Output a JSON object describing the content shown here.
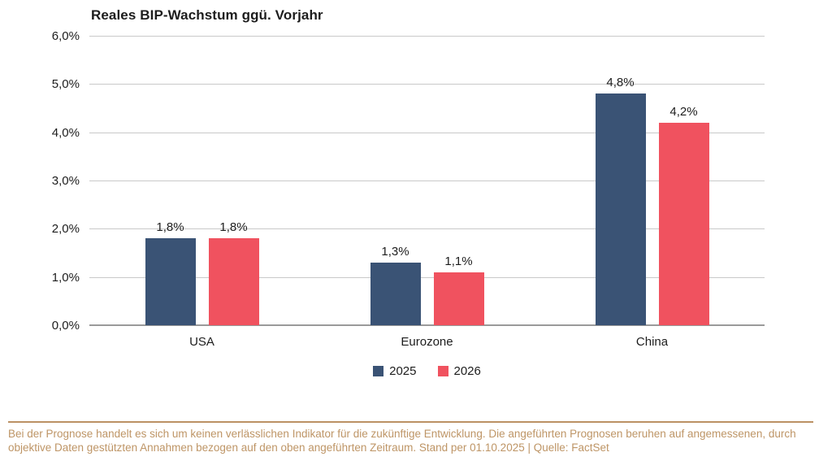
{
  "title": "Reales BIP-Wachstum ggü. Vorjahr",
  "footer": {
    "line1": "Bei der Prognose handelt es sich um keinen verlässlichen Indikator für die zukünftige Entwicklung. Die angeführten Prognosen beruhen auf angemessenen, durch",
    "line2": "objektive Daten gestützten Annahmen bezogen auf den oben angeführten Zeitraum. Stand per 01.10.2025  | Quelle: FactSet"
  },
  "colors": {
    "series_2025": "#3a5375",
    "series_2026": "#f0525f",
    "gridline": "#c9c9c9",
    "axis_line": "#9a9a9a",
    "text_dark": "#1d1d1d",
    "footer_text": "#be9566",
    "footer_divider": "#bb9164"
  },
  "chart_data": {
    "type": "bar",
    "title": "Reales BIP-Wachstum ggü. Vorjahr",
    "categories": [
      "USA",
      "Eurozone",
      "China"
    ],
    "series": [
      {
        "name": "2025",
        "color": "#3a5375",
        "values": [
          1.8,
          1.3,
          4.8
        ],
        "labels": [
          "1,8%",
          "1,3%",
          "4,8%"
        ]
      },
      {
        "name": "2026",
        "color": "#f0525f",
        "values": [
          1.8,
          1.1,
          4.2
        ],
        "labels": [
          "1,8%",
          "1,1%",
          "4,2%"
        ]
      }
    ],
    "ylim": [
      0,
      6
    ],
    "ytick_step": 1,
    "ytick_labels": [
      "0,0%",
      "1,0%",
      "2,0%",
      "3,0%",
      "4,0%",
      "5,0%",
      "6,0%"
    ],
    "grid": true,
    "legend_position": "bottom"
  }
}
